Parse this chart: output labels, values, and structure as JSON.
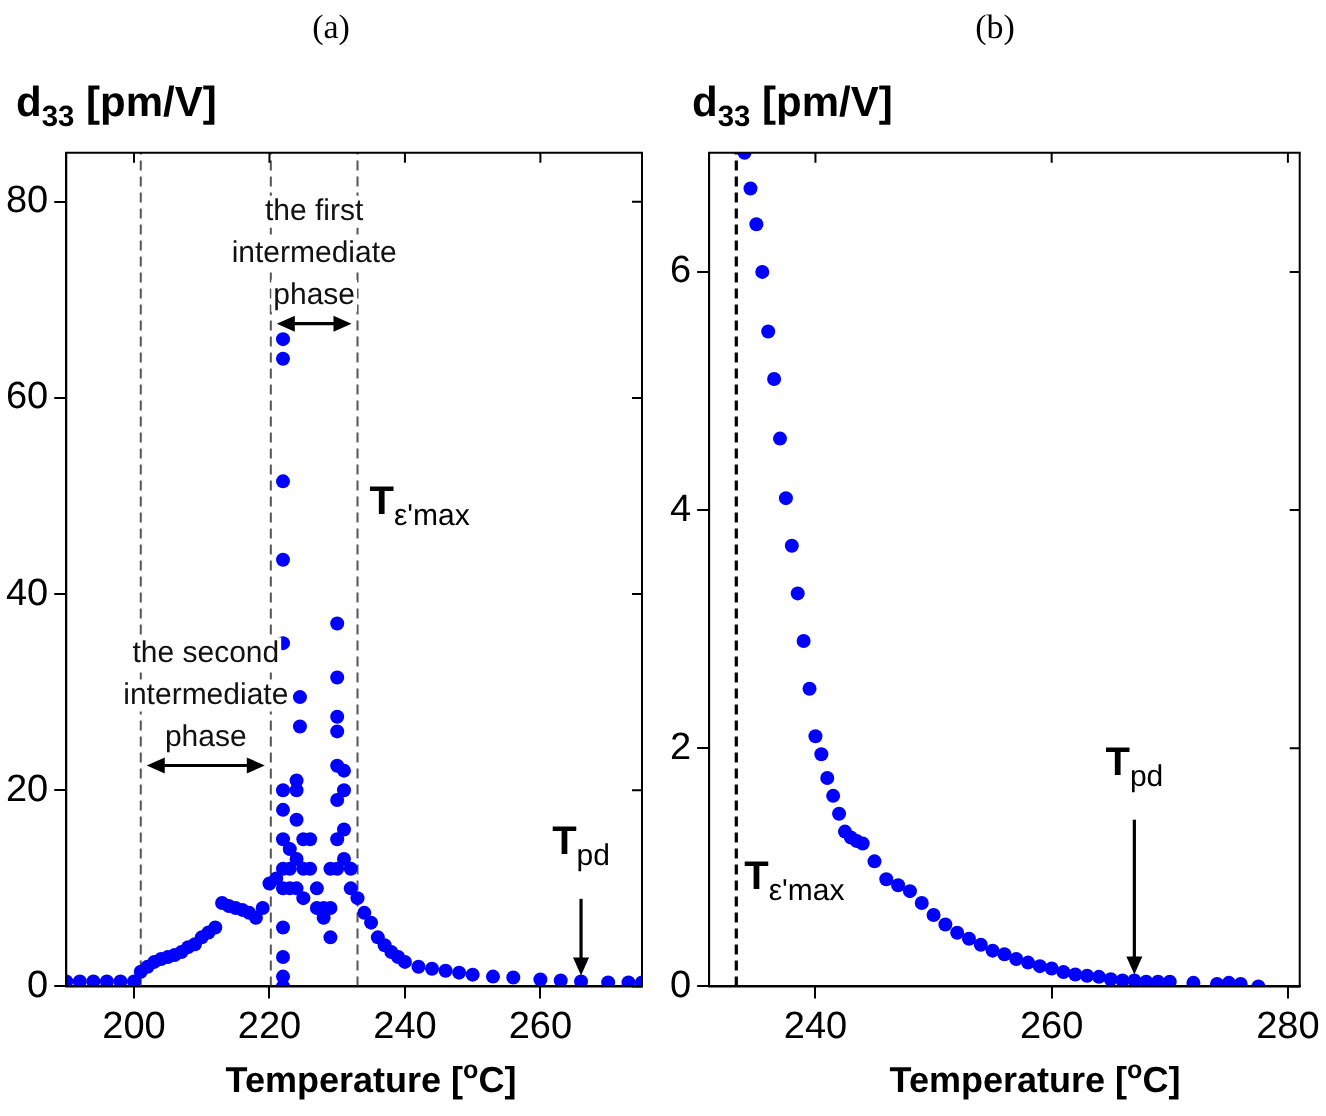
{
  "chart_data": [
    {
      "type": "scatter",
      "title": "(a)",
      "xlabel": "Temperature [$^{o}$C]",
      "ylabel": "d$_{33}$ [pm/V]",
      "xlim": [
        190,
        275
      ],
      "xticks": [
        200,
        220,
        240,
        260
      ],
      "ylim": [
        0,
        85
      ],
      "yticks": [
        0,
        20,
        40,
        60,
        80
      ],
      "grid": false,
      "legend": false,
      "marker": "circle",
      "series": [
        {
          "color": "#0000ff",
          "x": [
            190,
            192,
            194,
            196,
            198,
            200,
            201,
            202,
            203,
            204,
            205,
            206,
            207,
            208,
            209,
            210,
            211,
            212,
            213,
            214,
            215,
            216,
            217,
            218,
            219,
            220,
            221,
            222,
            222,
            222,
            222,
            222,
            222,
            222,
            222,
            222,
            222,
            222,
            222,
            222,
            222,
            223,
            223,
            223,
            224,
            224,
            224,
            224,
            224,
            224.5,
            224.5,
            225,
            225,
            225,
            226,
            226,
            227,
            227,
            228,
            228,
            229,
            229,
            229,
            230,
            230,
            230,
            230,
            230,
            230,
            230,
            230,
            231,
            231,
            231,
            231,
            232,
            232,
            233,
            234,
            235,
            236,
            237,
            238,
            239,
            240,
            242,
            244,
            246,
            248,
            250,
            253,
            256,
            260,
            263,
            266,
            270,
            273,
            275
          ],
          "values": [
            0.5,
            0.5,
            0.5,
            0.5,
            0.5,
            0.5,
            1.5,
            2,
            2.5,
            2.8,
            3,
            3.2,
            3.5,
            4,
            4.3,
            5,
            5.5,
            6,
            8.5,
            8.2,
            8,
            7.8,
            7.5,
            7,
            8,
            10.5,
            11,
            66,
            64,
            51.5,
            43.5,
            35,
            20,
            18,
            15,
            12,
            10,
            6,
            3,
            1,
            0,
            12,
            14,
            10,
            21,
            20,
            17,
            13,
            10,
            29.5,
            26.5,
            15,
            12,
            9,
            12,
            15,
            10,
            8,
            8,
            7,
            5,
            8,
            12,
            37,
            31.5,
            27.5,
            26,
            22.5,
            19,
            15,
            12,
            22,
            20,
            16,
            13,
            12,
            10,
            9,
            7.5,
            6.5,
            5,
            4.2,
            3.5,
            3,
            2.5,
            2,
            1.8,
            1.6,
            1.4,
            1.2,
            1,
            0.9,
            0.7,
            0.6,
            0.5,
            0.4,
            0.4,
            0.4
          ]
        }
      ],
      "ref_lines": [
        {
          "axis": "x",
          "value": 201,
          "color": "#555555",
          "line_style": "dashed"
        },
        {
          "axis": "x",
          "value": 220.2,
          "color": "#555555",
          "line_style": "dashed"
        },
        {
          "axis": "x",
          "value": 233,
          "color": "#555555",
          "line_style": "dashed",
          "label": "T$_{ε'max}$"
        }
      ],
      "annotations": [
        "the first intermediate phase",
        "the second intermediate phase",
        {
          "text": "T$_{pd}$",
          "x": 266,
          "y": 0.5
        }
      ]
    },
    {
      "type": "scatter",
      "title": "(b)",
      "xlabel": "Temperature [$^{o}$C]",
      "ylabel": "d$_{33}$ [pm/V]",
      "xlim": [
        231,
        281
      ],
      "xticks": [
        240,
        260,
        280
      ],
      "ylim": [
        0,
        7
      ],
      "yticks": [
        0,
        2,
        4,
        6
      ],
      "grid": false,
      "legend": false,
      "marker": "circle",
      "series": [
        {
          "color": "#0000ff",
          "x": [
            234,
            234.5,
            235,
            235.5,
            236,
            236.5,
            237,
            237.5,
            238,
            238.5,
            239,
            239.5,
            240,
            240.5,
            241,
            241.5,
            242,
            242.5,
            243,
            243.5,
            244,
            245,
            246,
            247,
            248,
            249,
            250,
            251,
            252,
            253,
            254,
            255,
            256,
            257,
            258,
            259,
            260,
            261,
            262,
            263,
            264,
            265,
            266,
            267,
            268,
            269,
            270,
            272,
            274,
            275,
            276,
            277.5
          ],
          "values": [
            7,
            6.7,
            6.4,
            6,
            5.5,
            5.1,
            4.6,
            4.1,
            3.7,
            3.3,
            2.9,
            2.5,
            2.1,
            1.95,
            1.75,
            1.6,
            1.45,
            1.3,
            1.25,
            1.22,
            1.2,
            1.05,
            0.9,
            0.85,
            0.8,
            0.7,
            0.6,
            0.52,
            0.45,
            0.4,
            0.35,
            0.3,
            0.27,
            0.23,
            0.2,
            0.17,
            0.15,
            0.12,
            0.1,
            0.09,
            0.08,
            0.06,
            0.05,
            0.05,
            0.04,
            0.04,
            0.04,
            0.03,
            0.02,
            0.03,
            0.02,
            0
          ]
        }
      ],
      "ref_lines": [
        {
          "axis": "x",
          "value": 233.3,
          "color": "#000000",
          "line_style": "dashed",
          "label": "T$_{ε'max}$"
        }
      ],
      "annotations": [
        {
          "text": "T$_{pd}$",
          "x": 267,
          "y": 0.05
        }
      ]
    }
  ]
}
